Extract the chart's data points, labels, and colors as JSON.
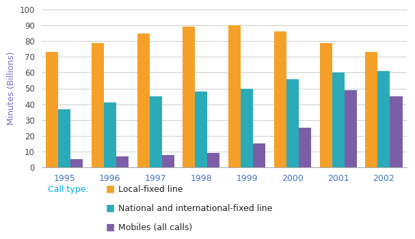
{
  "years": [
    "1995",
    "1996",
    "1997",
    "1998",
    "1999",
    "2000",
    "2001",
    "2002"
  ],
  "local_fixed": [
    73,
    79,
    85,
    89,
    90,
    86,
    79,
    73
  ],
  "national_fixed": [
    37,
    41,
    45,
    48,
    50,
    56,
    60,
    61
  ],
  "mobiles": [
    5,
    7,
    8,
    9,
    15,
    25,
    49,
    45
  ],
  "colors": {
    "local_fixed": "#F5A028",
    "national_fixed": "#2BABB8",
    "mobiles": "#7B5EA7"
  },
  "ylabel": "Minutes (Billions)",
  "ylim": [
    0,
    100
  ],
  "yticks": [
    0,
    10,
    20,
    30,
    40,
    50,
    60,
    70,
    80,
    90,
    100
  ],
  "legend_label_prefix": "Call type:",
  "legend_labels": [
    "Local-fixed line",
    "National and international-fixed line",
    "Mobiles (all calls)"
  ],
  "tick_color": "#4472C4",
  "axis_label_color": "#7B68C8",
  "legend_prefix_color": "#00AEEF",
  "bar_width": 0.27,
  "figsize": [
    6.07,
    3.5
  ],
  "dpi": 100
}
